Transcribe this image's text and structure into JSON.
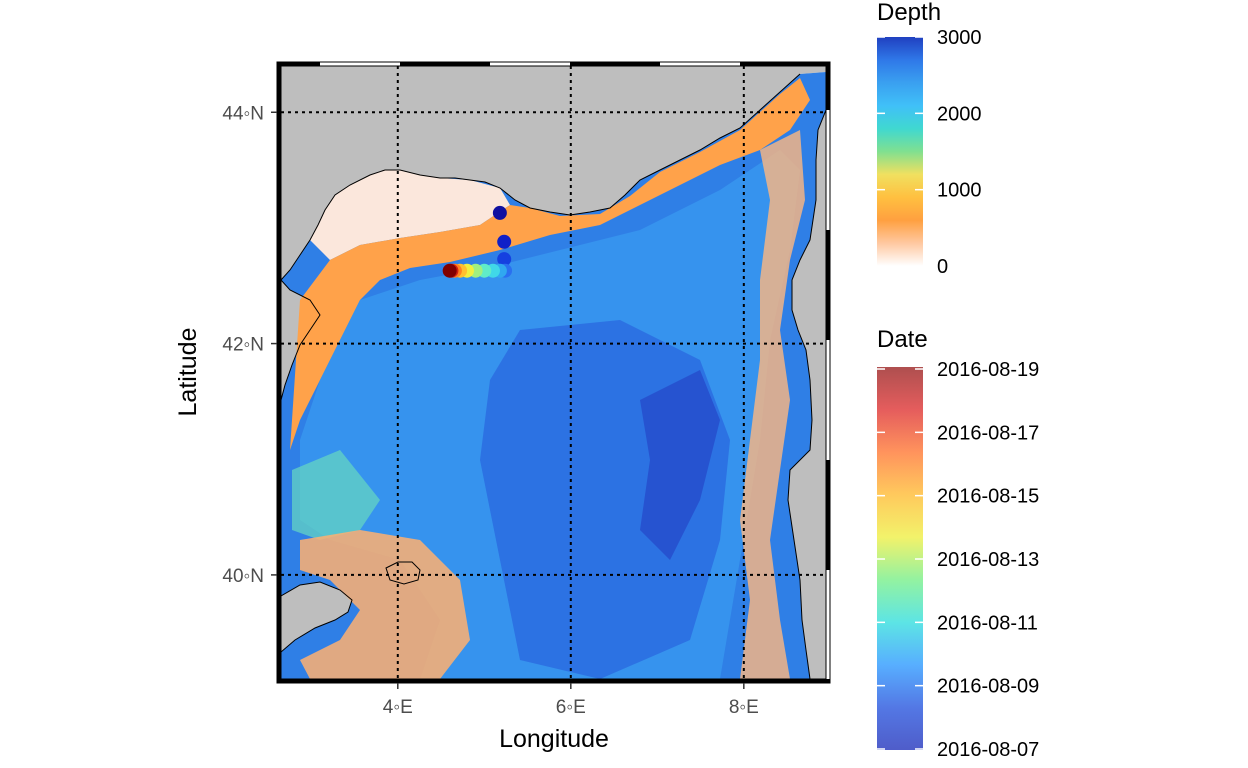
{
  "map": {
    "xlabel": "Longitude",
    "ylabel": "Latitude",
    "lon_range": [
      2.65,
      8.95
    ],
    "lat_range": [
      39.1,
      44.4
    ],
    "x_ticks": [
      {
        "value": 4,
        "label": "4◦E"
      },
      {
        "value": 6,
        "label": "6◦E"
      },
      {
        "value": 8,
        "label": "8◦E"
      }
    ],
    "y_ticks": [
      {
        "value": 40,
        "label": "40◦N"
      },
      {
        "value": 42,
        "label": "42◦N"
      },
      {
        "value": 44,
        "label": "44◦N"
      }
    ],
    "land_color": "#bebebe",
    "graticule": "dotted"
  },
  "legend_depth": {
    "title": "Depth",
    "range": [
      0,
      3000
    ],
    "labels": [
      "3000",
      "2000",
      "1000",
      "0"
    ],
    "colors": [
      "#ffffff",
      "#ffc8a0",
      "#ffa040",
      "#ffc040",
      "#f0e060",
      "#80e090",
      "#40d8d0",
      "#40c0f8",
      "#3aa0f0",
      "#2f78e8",
      "#2040c0"
    ]
  },
  "legend_date": {
    "title": "Date",
    "labels": [
      "2016-08-19",
      "2016-08-17",
      "2016-08-15",
      "2016-08-13",
      "2016-08-11",
      "2016-08-09",
      "2016-08-07"
    ],
    "colors": [
      "#3040c0",
      "#3560e0",
      "#3aa0ff",
      "#40e0e0",
      "#80f090",
      "#f0f050",
      "#ffc040",
      "#ff8040",
      "#e04040",
      "#a03030"
    ]
  },
  "track": {
    "points": [
      {
        "lon": 5.18,
        "lat": 43.13,
        "date": "2016-08-07"
      },
      {
        "lon": 5.23,
        "lat": 42.88,
        "date": "2016-08-08"
      },
      {
        "lon": 5.23,
        "lat": 42.73,
        "date": "2016-08-09"
      },
      {
        "lon": 5.24,
        "lat": 42.63,
        "date": "2016-08-10"
      },
      {
        "lon": 5.18,
        "lat": 42.63,
        "date": "2016-08-11"
      },
      {
        "lon": 5.1,
        "lat": 42.63,
        "date": "2016-08-12"
      },
      {
        "lon": 5.0,
        "lat": 42.63,
        "date": "2016-08-13"
      },
      {
        "lon": 4.9,
        "lat": 42.63,
        "date": "2016-08-14"
      },
      {
        "lon": 4.8,
        "lat": 42.63,
        "date": "2016-08-15"
      },
      {
        "lon": 4.72,
        "lat": 42.63,
        "date": "2016-08-16"
      },
      {
        "lon": 4.66,
        "lat": 42.63,
        "date": "2016-08-17"
      },
      {
        "lon": 4.62,
        "lat": 42.63,
        "date": "2016-08-18"
      },
      {
        "lon": 4.6,
        "lat": 42.63,
        "date": "2016-08-19"
      }
    ]
  }
}
